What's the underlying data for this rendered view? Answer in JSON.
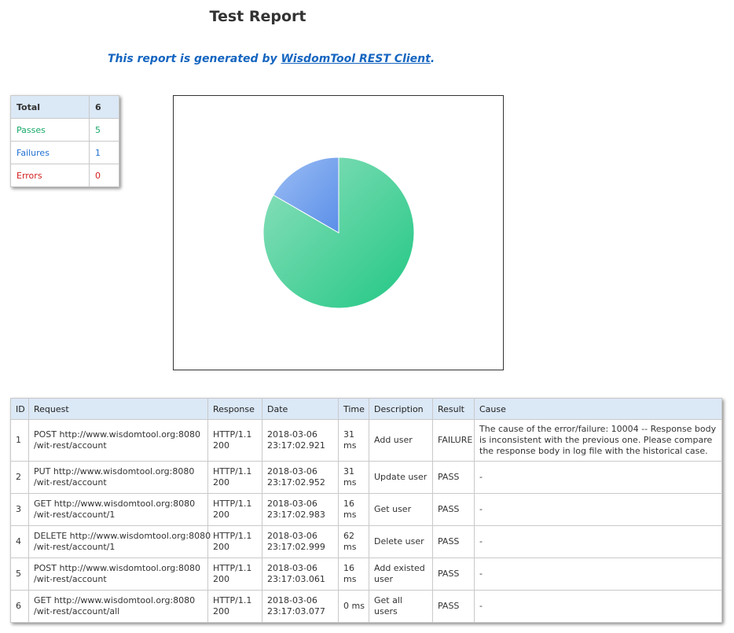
{
  "header": {
    "title": "Test Report",
    "subtitle_prefix": "This report is generated by ",
    "subtitle_link": "WisdomTool REST Client",
    "subtitle_suffix": "."
  },
  "summary": {
    "total_label": "Total",
    "total_value": "6",
    "passes_label": "Passes",
    "passes_value": "5",
    "failures_label": "Failures",
    "failures_value": "1",
    "errors_label": "Errors",
    "errors_value": "0"
  },
  "colors": {
    "pass": "#1aaa6a",
    "failure": "#1f6fd0",
    "error": "#d32020",
    "header_bg": "#dbe8f6"
  },
  "chart_data": {
    "type": "pie",
    "categories": [
      "Passes",
      "Failures",
      "Errors"
    ],
    "values": [
      5,
      1,
      0
    ],
    "colors": [
      "#21c784",
      "#5b8fe8",
      "#d32020"
    ]
  },
  "table": {
    "headers": [
      "ID",
      "Request",
      "Response",
      "Date",
      "Time",
      "Description",
      "Result",
      "Cause"
    ],
    "rows": [
      {
        "id": "1",
        "req1": "POST http://www.wisdomtool.org:8080",
        "req2": "/wit-rest/account",
        "resp1": "HTTP/1.1",
        "resp2": "200",
        "date1": "2018-03-06",
        "date2": "23:17:02.921",
        "time1": "31",
        "time2": "ms",
        "desc": "Add user",
        "result": "FAILURE",
        "cause": "The cause of the error/failure: 10004 -- Response body is inconsistent with the previous one. Please compare the response body in log file with the historical case."
      },
      {
        "id": "2",
        "req1": "PUT http://www.wisdomtool.org:8080",
        "req2": "/wit-rest/account",
        "resp1": "HTTP/1.1",
        "resp2": "200",
        "date1": "2018-03-06",
        "date2": "23:17:02.952",
        "time1": "31",
        "time2": "ms",
        "desc": "Update user",
        "result": "PASS",
        "cause": "-"
      },
      {
        "id": "3",
        "req1": "GET http://www.wisdomtool.org:8080",
        "req2": "/wit-rest/account/1",
        "resp1": "HTTP/1.1",
        "resp2": "200",
        "date1": "2018-03-06",
        "date2": "23:17:02.983",
        "time1": "16",
        "time2": "ms",
        "desc": "Get user",
        "result": "PASS",
        "cause": "-"
      },
      {
        "id": "4",
        "req1": "DELETE http://www.wisdomtool.org:8080",
        "req2": "/wit-rest/account/1",
        "resp1": "HTTP/1.1",
        "resp2": "200",
        "date1": "2018-03-06",
        "date2": "23:17:02.999",
        "time1": "62",
        "time2": "ms",
        "desc": "Delete user",
        "result": "PASS",
        "cause": "-"
      },
      {
        "id": "5",
        "req1": "POST http://www.wisdomtool.org:8080",
        "req2": "/wit-rest/account",
        "resp1": "HTTP/1.1",
        "resp2": "200",
        "date1": "2018-03-06",
        "date2": "23:17:03.061",
        "time1": "16",
        "time2": "ms",
        "desc": "Add existed user",
        "result": "PASS",
        "cause": "-"
      },
      {
        "id": "6",
        "req1": "GET http://www.wisdomtool.org:8080",
        "req2": "/wit-rest/account/all",
        "resp1": "HTTP/1.1",
        "resp2": "200",
        "date1": "2018-03-06",
        "date2": "23:17:03.077",
        "time1": "0 ms",
        "time2": "",
        "desc": "Get all users",
        "result": "PASS",
        "cause": "-"
      }
    ]
  }
}
